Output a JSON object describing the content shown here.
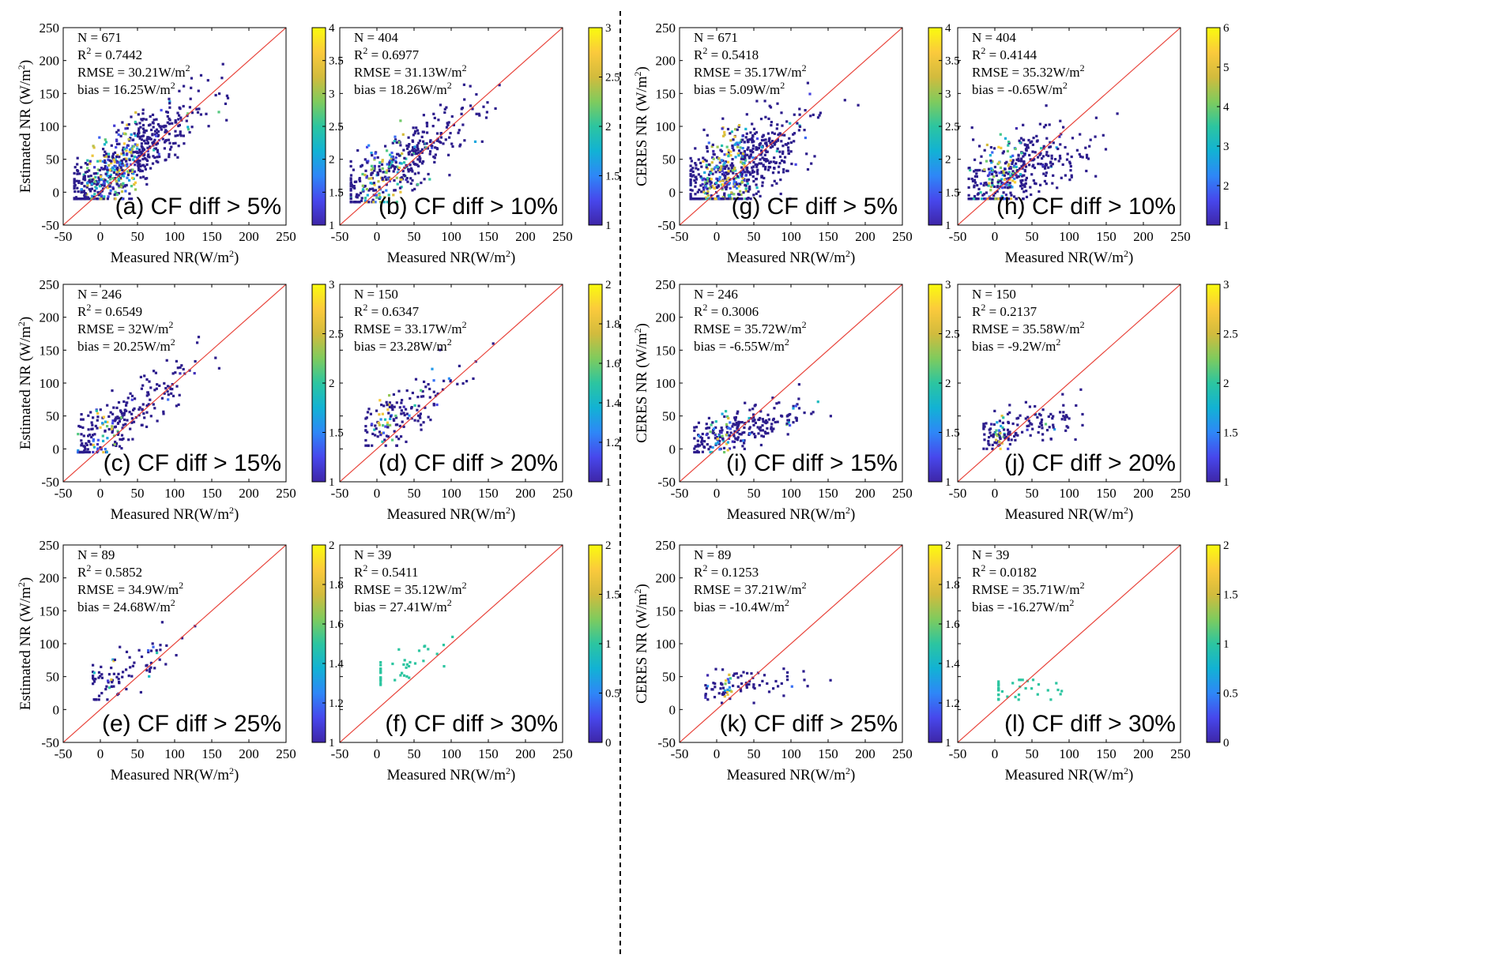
{
  "figure": {
    "colormap": [
      "#3e26a8",
      "#4747ec",
      "#2e87f7",
      "#12b2d4",
      "#2cc5a0",
      "#7fcb5d",
      "#d2bb3d",
      "#fbca3c",
      "#f9fb0e"
    ],
    "point_color_default": "#2c1c8c",
    "one_to_one_line_color": "#e8433a",
    "separator": "dashed vertical line between left and right panel groups"
  },
  "chart_data": [
    {
      "id": "a",
      "type": "scatter",
      "label": "(a) CF diff > 5%",
      "xlabel": "Measured NR(W/m^2)",
      "ylabel": "Estimated NR (W/m^2)",
      "xlim": [
        -50,
        250
      ],
      "ylim": [
        -50,
        250
      ],
      "xticks": [
        "-50",
        "0",
        "50",
        "100",
        "150",
        "200",
        "250"
      ],
      "yticks": [
        "-50",
        "0",
        "50",
        "100",
        "150",
        "200",
        "250"
      ],
      "stats": {
        "n": "N = 671",
        "r2": "0.7442",
        "rmse": "RMSE = 30.21W/m",
        "bias": "bias = 16.25W/m"
      },
      "colorbar": {
        "range": [
          1,
          4
        ],
        "ticks": [
          "1",
          "1.5",
          "2",
          "2.5",
          "3",
          "3.5",
          "4"
        ]
      },
      "series": {
        "n": 671,
        "slope": 0.78,
        "intercept": 20,
        "spread": 26,
        "xmean": 40,
        "xsd": 48,
        "xmin": -35,
        "xmax": 215,
        "yclip": [
          -10,
          195
        ],
        "high_density": [
          -20,
          50
        ]
      }
    },
    {
      "id": "b",
      "type": "scatter",
      "label": "(b) CF diff > 10%",
      "xlabel": "Measured NR(W/m^2)",
      "ylabel": "",
      "xlim": [
        -50,
        250
      ],
      "ylim": [
        -50,
        250
      ],
      "xticks": [
        "-50",
        "0",
        "50",
        "100",
        "150",
        "200",
        "250"
      ],
      "yticks": [],
      "stats": {
        "n": "N = 404",
        "r2": "0.6977",
        "rmse": "RMSE = 31.13W/m",
        "bias": "bias = 18.26W/m"
      },
      "colorbar": {
        "range": [
          1,
          3
        ],
        "ticks": [
          "1",
          "1.5",
          "2",
          "2.5",
          "3"
        ]
      },
      "series": {
        "n": 404,
        "slope": 0.72,
        "intercept": 22,
        "spread": 24,
        "xmean": 40,
        "xsd": 45,
        "xmin": -35,
        "xmax": 165,
        "yclip": [
          -15,
          175
        ],
        "high_density": [
          -20,
          40
        ]
      }
    },
    {
      "id": "g",
      "type": "scatter",
      "label": "(g) CF diff > 5%",
      "xlabel": "Measured NR(W/m^2)",
      "ylabel": "CERES NR (W/m^2)",
      "xlim": [
        -50,
        250
      ],
      "ylim": [
        -50,
        250
      ],
      "xticks": [
        "-50",
        "0",
        "50",
        "100",
        "150",
        "200",
        "250"
      ],
      "yticks": [
        "-50",
        "0",
        "50",
        "100",
        "150",
        "200",
        "250"
      ],
      "stats": {
        "n": "N = 671",
        "r2": "0.5418",
        "rmse": "RMSE = 35.17W/m",
        "bias": "bias = 5.09W/m"
      },
      "colorbar": {
        "range": [
          1,
          4
        ],
        "ticks": [
          "1",
          "1.5",
          "2",
          "2.5",
          "3",
          "3.5",
          "4"
        ]
      },
      "series": {
        "n": 671,
        "slope": 0.55,
        "intercept": 18,
        "spread": 32,
        "xmean": 40,
        "xsd": 48,
        "xmin": -35,
        "xmax": 215,
        "yclip": [
          -10,
          190
        ],
        "high_density": [
          -20,
          40
        ]
      }
    },
    {
      "id": "h",
      "type": "scatter",
      "label": "(h) CF diff > 10%",
      "xlabel": "Measured NR(W/m^2)",
      "ylabel": "",
      "xlim": [
        -50,
        250
      ],
      "ylim": [
        -50,
        250
      ],
      "xticks": [
        "-50",
        "0",
        "50",
        "100",
        "150",
        "200",
        "250"
      ],
      "yticks": [],
      "stats": {
        "n": "N = 404",
        "r2": "0.4144",
        "rmse": "RMSE = 35.32W/m",
        "bias": "bias = -0.65W/m"
      },
      "colorbar": {
        "range": [
          1,
          6
        ],
        "ticks": [
          "1",
          "2",
          "3",
          "4",
          "5",
          "6"
        ]
      },
      "series": {
        "n": 404,
        "slope": 0.45,
        "intercept": 18,
        "spread": 28,
        "xmean": 45,
        "xsd": 45,
        "xmin": -35,
        "xmax": 165,
        "yclip": [
          -10,
          185
        ],
        "high_density": [
          -20,
          30
        ]
      }
    },
    {
      "id": "c",
      "type": "scatter",
      "label": "(c) CF diff > 15%",
      "xlabel": "Measured NR(W/m^2)",
      "ylabel": "Estimated NR (W/m^2)",
      "xlim": [
        -50,
        250
      ],
      "ylim": [
        -50,
        250
      ],
      "xticks": [
        "-50",
        "0",
        "50",
        "100",
        "150",
        "200",
        "250"
      ],
      "yticks": [
        "-50",
        "0",
        "50",
        "100",
        "150",
        "200",
        "250"
      ],
      "stats": {
        "n": "N = 246",
        "r2": "0.6549",
        "rmse": "RMSE = 32W/m",
        "bias": "bias = 20.25W/m"
      },
      "colorbar": {
        "range": [
          1,
          3
        ],
        "ticks": [
          "1",
          "1.5",
          "2",
          "2.5",
          "3"
        ]
      },
      "series": {
        "n": 246,
        "slope": 0.75,
        "intercept": 26,
        "spread": 22,
        "xmean": 45,
        "xsd": 40,
        "xmin": -30,
        "xmax": 160,
        "yclip": [
          -5,
          170
        ],
        "high_density": [
          -10,
          20
        ]
      }
    },
    {
      "id": "d",
      "type": "scatter",
      "label": "(d) CF diff > 20%",
      "xlabel": "Measured NR(W/m^2)",
      "ylabel": "",
      "xlim": [
        -50,
        250
      ],
      "ylim": [
        -50,
        250
      ],
      "xticks": [
        "-50",
        "0",
        "50",
        "100",
        "150",
        "200",
        "250"
      ],
      "yticks": [],
      "stats": {
        "n": "N = 150",
        "r2": "0.6347",
        "rmse": "RMSE = 33.17W/m",
        "bias": "bias = 23.28W/m"
      },
      "colorbar": {
        "range": [
          1,
          2
        ],
        "ticks": [
          "1",
          "1.2",
          "1.4",
          "1.6",
          "1.8",
          "2"
        ]
      },
      "series": {
        "n": 150,
        "slope": 0.72,
        "intercept": 32,
        "spread": 20,
        "xmean": 45,
        "xsd": 38,
        "xmin": -15,
        "xmax": 160,
        "yclip": [
          5,
          160
        ],
        "high_density": [
          0,
          20
        ]
      }
    },
    {
      "id": "i",
      "type": "scatter",
      "label": "(i) CF diff > 15%",
      "xlabel": "Measured NR(W/m^2)",
      "ylabel": "CERES NR (W/m^2)",
      "xlim": [
        -50,
        250
      ],
      "ylim": [
        -50,
        250
      ],
      "xticks": [
        "-50",
        "0",
        "50",
        "100",
        "150",
        "200",
        "250"
      ],
      "yticks": [
        "-50",
        "0",
        "50",
        "100",
        "150",
        "200",
        "250"
      ],
      "stats": {
        "n": "N = 246",
        "r2": "0.3006",
        "rmse": "RMSE = 35.72W/m",
        "bias": "bias = -6.55W/m"
      },
      "colorbar": {
        "range": [
          1,
          3
        ],
        "ticks": [
          "1",
          "1.5",
          "2",
          "2.5",
          "3"
        ]
      },
      "series": {
        "n": 246,
        "slope": 0.32,
        "intercept": 20,
        "spread": 16,
        "xmean": 45,
        "xsd": 40,
        "xmin": -30,
        "xmax": 160,
        "yclip": [
          -5,
          125
        ],
        "high_density": [
          -10,
          20
        ]
      }
    },
    {
      "id": "j",
      "type": "scatter",
      "label": "(j) CF diff > 20%",
      "xlabel": "Measured NR(W/m^2)",
      "ylabel": "",
      "xlim": [
        -50,
        250
      ],
      "ylim": [
        -50,
        250
      ],
      "xticks": [
        "-50",
        "0",
        "50",
        "100",
        "150",
        "200",
        "250"
      ],
      "yticks": [],
      "stats": {
        "n": "N = 150",
        "r2": "0.2137",
        "rmse": "RMSE = 35.58W/m",
        "bias": "bias = -9.2W/m"
      },
      "colorbar": {
        "range": [
          1,
          3
        ],
        "ticks": [
          "1",
          "1.5",
          "2",
          "2.5",
          "3"
        ]
      },
      "series": {
        "n": 150,
        "slope": 0.28,
        "intercept": 22,
        "spread": 14,
        "xmean": 45,
        "xsd": 38,
        "xmin": -15,
        "xmax": 160,
        "yclip": [
          0,
          90
        ],
        "high_density": [
          0,
          15
        ]
      }
    },
    {
      "id": "e",
      "type": "scatter",
      "label": "(e) CF diff > 25%",
      "xlabel": "Measured NR(W/m^2)",
      "ylabel": "Estimated NR (W/m^2)",
      "xlim": [
        -50,
        250
      ],
      "ylim": [
        -50,
        250
      ],
      "xticks": [
        "-50",
        "0",
        "50",
        "100",
        "150",
        "200",
        "250"
      ],
      "yticks": [
        "-50",
        "0",
        "50",
        "100",
        "150",
        "200",
        "250"
      ],
      "stats": {
        "n": "N = 89",
        "r2": "0.5852",
        "rmse": "RMSE = 34.9W/m",
        "bias": "bias = 24.68W/m"
      },
      "colorbar": {
        "range": [
          1,
          2
        ],
        "ticks": [
          "1",
          "1.2",
          "1.4",
          "1.6",
          "1.8",
          "2"
        ]
      },
      "series": {
        "n": 89,
        "slope": 0.65,
        "intercept": 38,
        "spread": 20,
        "xmean": 45,
        "xsd": 35,
        "xmin": -10,
        "xmax": 160,
        "yclip": [
          15,
          170
        ],
        "high_density": [
          10,
          20
        ]
      }
    },
    {
      "id": "f",
      "type": "scatter",
      "label": "(f) CF diff > 30%",
      "xlabel": "Measured NR(W/m^2)",
      "ylabel": "",
      "xlim": [
        -50,
        250
      ],
      "ylim": [
        -50,
        250
      ],
      "xticks": [
        "-50",
        "0",
        "50",
        "100",
        "150",
        "200",
        "250"
      ],
      "yticks": [],
      "stats": {
        "n": "N = 39",
        "r2": "0.5411",
        "rmse": "RMSE = 35.12W/m",
        "bias": "bias = 27.41W/m"
      },
      "colorbar": {
        "range": [
          0,
          2
        ],
        "ticks": [
          "0",
          "0.5",
          "1",
          "1.5",
          "2"
        ]
      },
      "series": {
        "n": 39,
        "slope": 0.6,
        "intercept": 45,
        "spread": 14,
        "xmean": 55,
        "xsd": 30,
        "xmin": 5,
        "xmax": 120,
        "yclip": [
          35,
          170
        ],
        "high_density": [
          0,
          0
        ],
        "uniform_value": 1
      }
    },
    {
      "id": "k",
      "type": "scatter",
      "label": "(k) CF diff > 25%",
      "xlabel": "Measured NR(W/m^2)",
      "ylabel": "CERES NR (W/m^2)",
      "xlim": [
        -50,
        250
      ],
      "ylim": [
        -50,
        250
      ],
      "xticks": [
        "-50",
        "0",
        "50",
        "100",
        "150",
        "200",
        "250"
      ],
      "yticks": [
        "-50",
        "0",
        "50",
        "100",
        "150",
        "200",
        "250"
      ],
      "stats": {
        "n": "N = 89",
        "r2": "0.1253",
        "rmse": "RMSE = 37.21W/m",
        "bias": "bias = -10.4W/m"
      },
      "colorbar": {
        "range": [
          1,
          2
        ],
        "ticks": [
          "1",
          "1.2",
          "1.4",
          "1.6",
          "1.8",
          "2"
        ]
      },
      "series": {
        "n": 89,
        "slope": 0.15,
        "intercept": 30,
        "spread": 12,
        "xmean": 50,
        "xsd": 40,
        "xmin": -15,
        "xmax": 160,
        "yclip": [
          10,
          62
        ],
        "high_density": [
          10,
          20
        ]
      }
    },
    {
      "id": "l",
      "type": "scatter",
      "label": "(l) CF diff > 30%",
      "xlabel": "Measured NR(W/m^2)",
      "ylabel": "",
      "xlim": [
        -50,
        250
      ],
      "ylim": [
        -50,
        250
      ],
      "xticks": [
        "-50",
        "0",
        "50",
        "100",
        "150",
        "200",
        "250"
      ],
      "yticks": [],
      "stats": {
        "n": "N = 39",
        "r2": "0.0182",
        "rmse": "RMSE = 35.71W/m",
        "bias": "bias = -16.27W/m"
      },
      "colorbar": {
        "range": [
          0,
          2
        ],
        "ticks": [
          "0",
          "0.5",
          "1",
          "1.5",
          "2"
        ]
      },
      "series": {
        "n": 39,
        "slope": 0.05,
        "intercept": 30,
        "spread": 9,
        "xmean": 55,
        "xsd": 30,
        "xmin": 5,
        "xmax": 120,
        "yclip": [
          15,
          45
        ],
        "high_density": [
          0,
          0
        ],
        "uniform_value": 1
      }
    }
  ]
}
